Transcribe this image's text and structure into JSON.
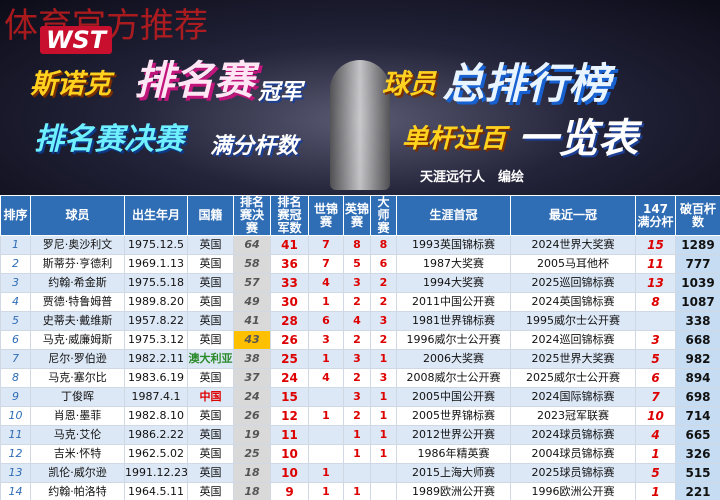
{
  "banner": {
    "watermark": "体育官方推荐",
    "logo": "WST",
    "title_a1": "斯诺克",
    "title_a2": "排名赛",
    "title_a3": "冠军",
    "title_b1": "球员",
    "title_b2": "总排行榜",
    "title_c1": "排名赛决赛",
    "title_c2": "满分杆数",
    "title_d1": "单杆过百",
    "title_d2": "一览表",
    "author": "天涯远行人　编绘"
  },
  "table": {
    "columns": [
      "排序",
      "球员",
      "出生年月",
      "国籍",
      "排名赛决赛",
      "排名赛冠军数",
      "世锦赛",
      "英锦赛",
      "大师赛",
      "生涯首冠",
      "最近一冠",
      "147满分杆",
      "破百杆数"
    ],
    "rows": [
      [
        "1",
        "罗尼·奥沙利文",
        "1975.12.5",
        "英国",
        "64",
        "41",
        "7",
        "8",
        "8",
        "1993英国锦标赛",
        "2024世界大奖赛",
        "15",
        "1289"
      ],
      [
        "2",
        "斯蒂芬·亨德利",
        "1969.1.13",
        "英国",
        "58",
        "36",
        "7",
        "5",
        "6",
        "1987大奖赛",
        "2005马耳他杯",
        "11",
        "777"
      ],
      [
        "3",
        "约翰·希金斯",
        "1975.5.18",
        "英国",
        "57",
        "33",
        "4",
        "3",
        "2",
        "1994大奖赛",
        "2025巡回锦标赛",
        "13",
        "1039"
      ],
      [
        "4",
        "贾德·特鲁姆普",
        "1989.8.20",
        "英国",
        "49",
        "30",
        "1",
        "2",
        "2",
        "2011中国公开赛",
        "2024英国锦标赛",
        "8",
        "1087"
      ],
      [
        "5",
        "史蒂夫·戴维斯",
        "1957.8.22",
        "英国",
        "41",
        "28",
        "6",
        "4",
        "3",
        "1981世界锦标赛",
        "1995威尔士公开赛",
        null,
        "338"
      ],
      [
        "6",
        "马克·威廉姆斯",
        "1975.3.12",
        "英国",
        "43",
        "26",
        "3",
        "2",
        "2",
        "1996威尔士公开赛",
        "2024巡回锦标赛",
        "3",
        "668"
      ],
      [
        "7",
        "尼尔·罗伯逊",
        "1982.2.11",
        "澳大利亚",
        "38",
        "25",
        "1",
        "3",
        "1",
        "2006大奖赛",
        "2025世界大奖赛",
        "5",
        "982"
      ],
      [
        "8",
        "马克·塞尔比",
        "1983.6.19",
        "英国",
        "37",
        "24",
        "4",
        "2",
        "3",
        "2008威尔士公开赛",
        "2025威尔士公开赛",
        "6",
        "894"
      ],
      [
        "9",
        "丁俊晖",
        "1987.4.1",
        "中国",
        "24",
        "15",
        null,
        "3",
        "1",
        "2005中国公开赛",
        "2024国际锦标赛",
        "7",
        "698"
      ],
      [
        "10",
        "肖恩·墨菲",
        "1982.8.10",
        "英国",
        "26",
        "12",
        "1",
        "2",
        "1",
        "2005世界锦标赛",
        "2023冠军联赛",
        "10",
        "714"
      ],
      [
        "11",
        "马克·艾伦",
        "1986.2.22",
        "英国",
        "19",
        "11",
        null,
        "1",
        "1",
        "2012世界公开赛",
        "2024球员锦标赛",
        "4",
        "665"
      ],
      [
        "12",
        "吉米·怀特",
        "1962.5.02",
        "英国",
        "25",
        "10",
        null,
        "1",
        "1",
        "1986年精英赛",
        "2004球员锦标赛",
        "1",
        "326"
      ],
      [
        "13",
        "凯伦·威尔逊",
        "1991.12.23",
        "英国",
        "18",
        "10",
        "1",
        null,
        null,
        "2015上海大师赛",
        "2025球员锦标赛",
        "5",
        "515"
      ],
      [
        "14",
        "约翰·帕洛特",
        "1964.5.11",
        "英国",
        "18",
        "9",
        "1",
        "1",
        null,
        "1989欧洲公开赛",
        "1996欧洲公开赛",
        "1",
        "221"
      ]
    ]
  }
}
